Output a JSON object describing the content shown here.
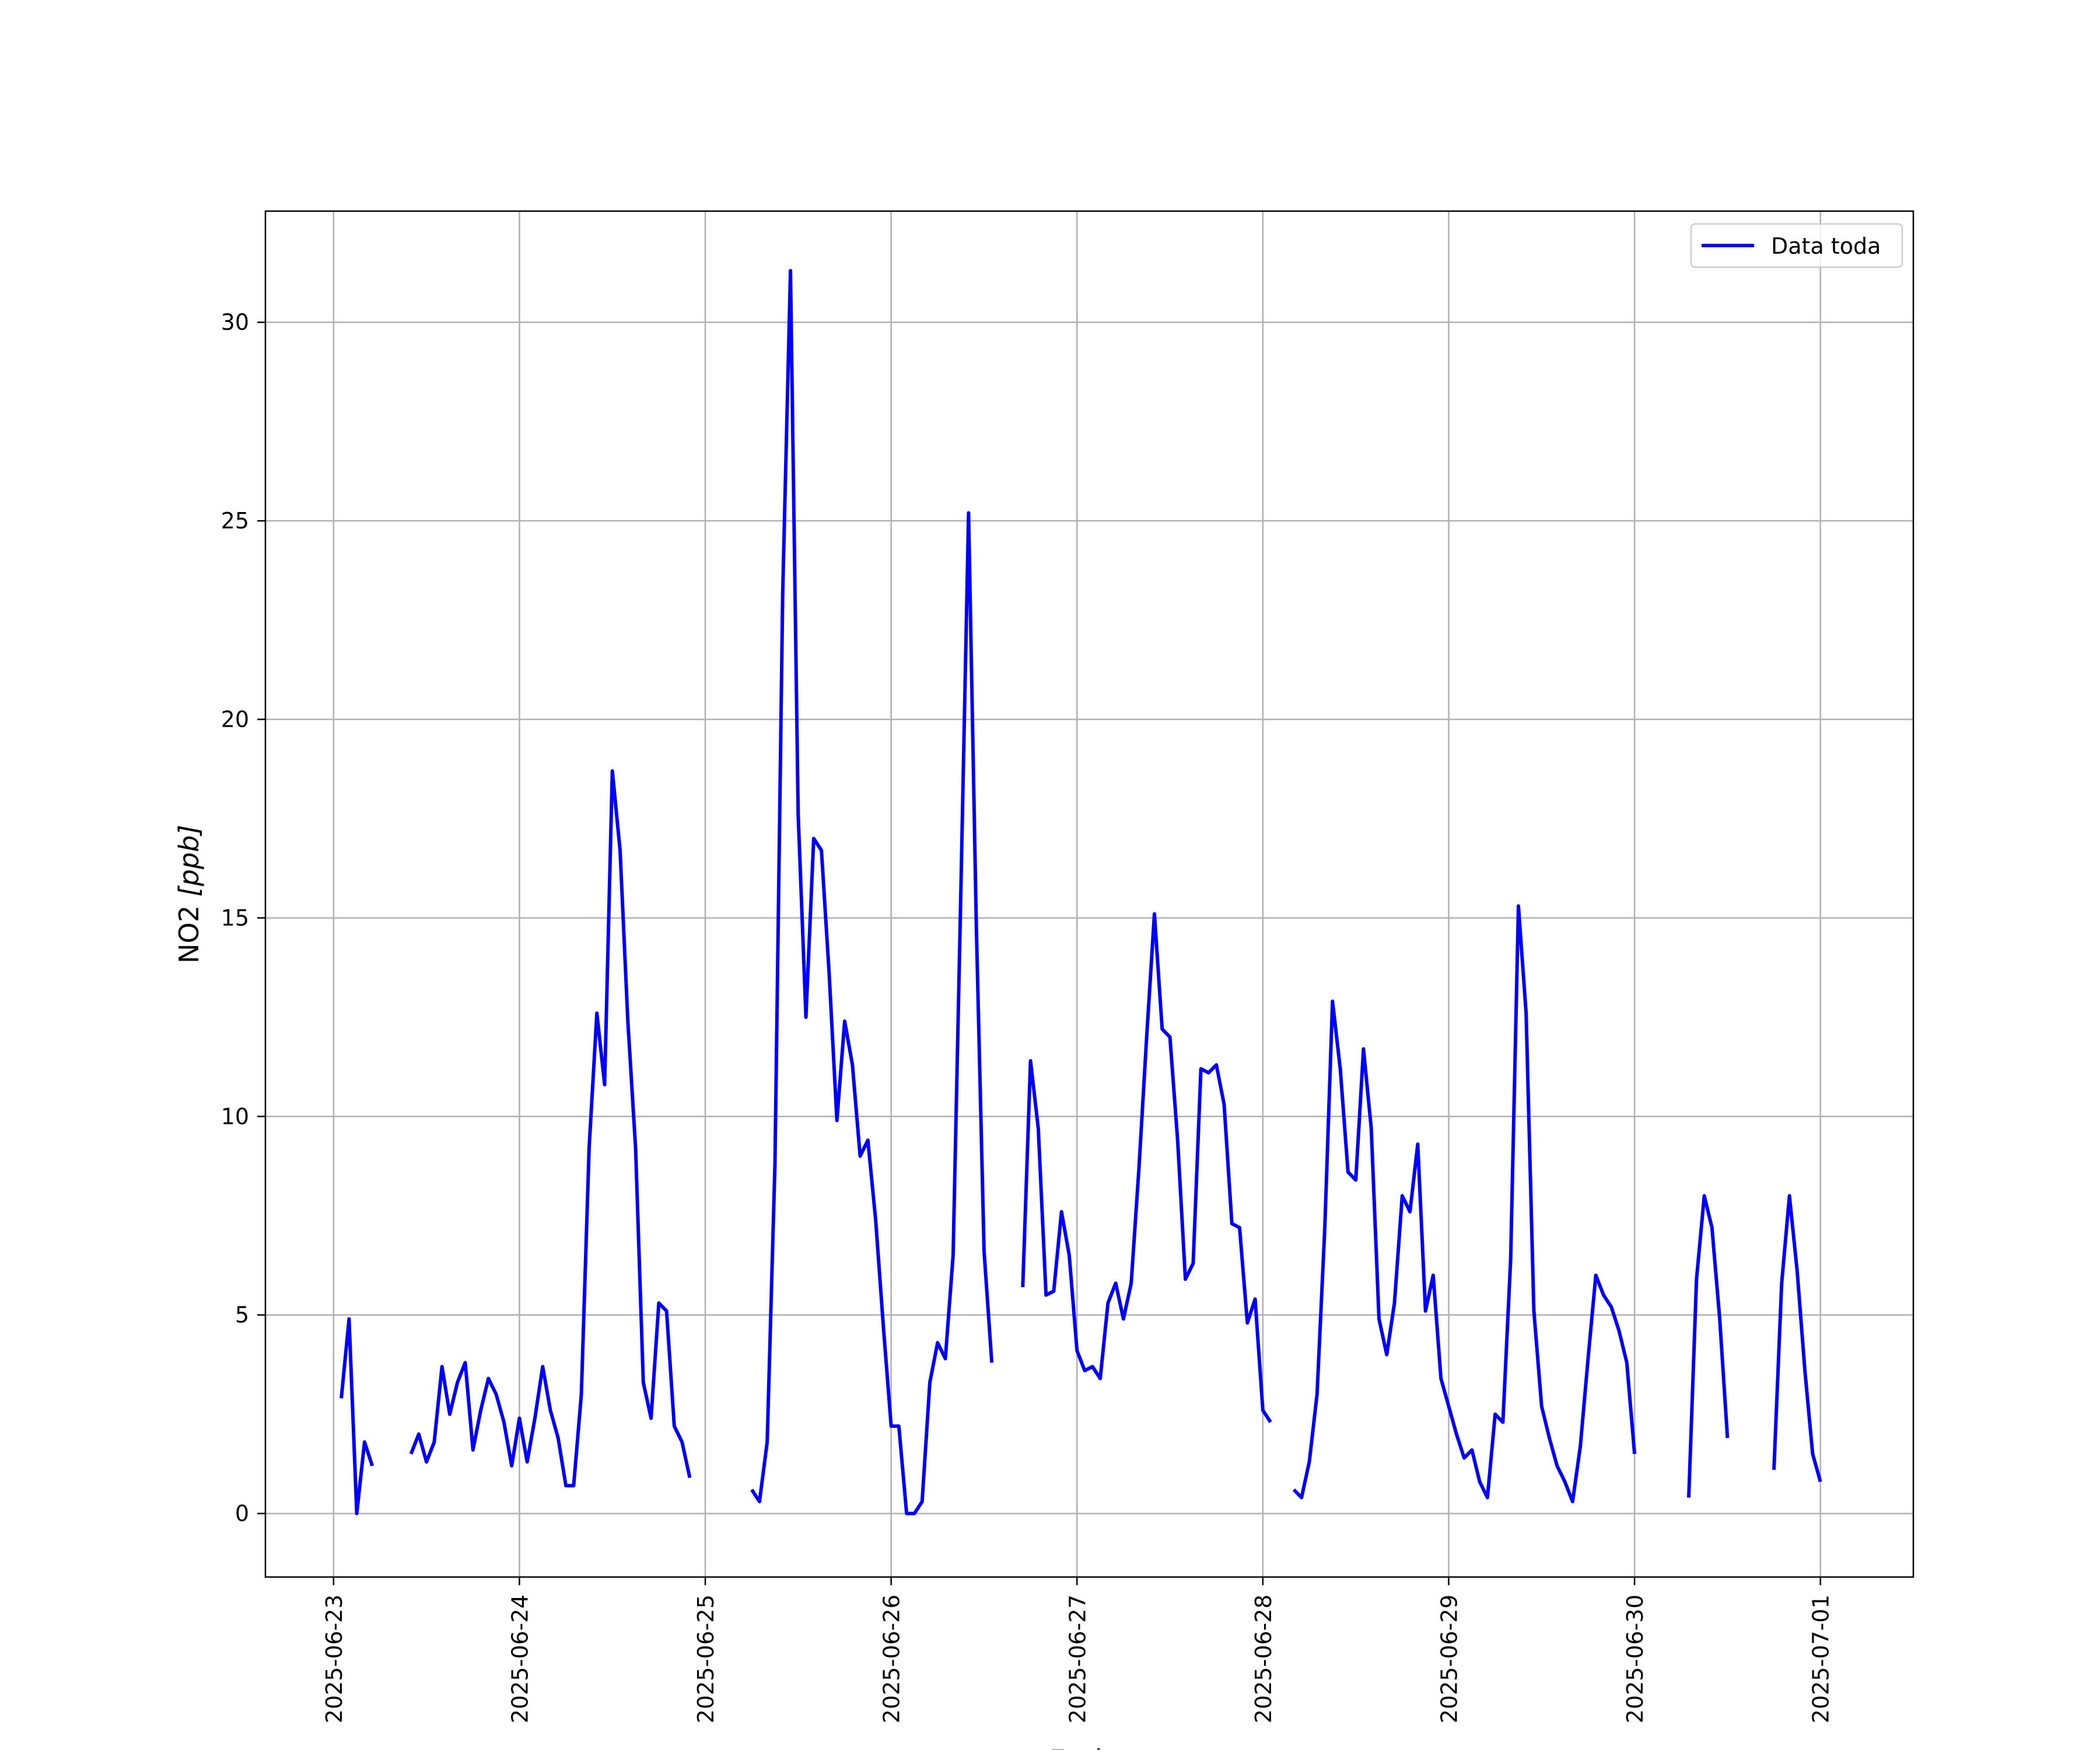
{
  "chart_data": {
    "type": "line",
    "xlabel": "Fecha",
    "ylabel_main": "NO2 ",
    "ylabel_unit": "[ppb]",
    "xlim": [
      "2025-06-22T15:12",
      "2025-07-01T12:00"
    ],
    "ylim": [
      -1.6,
      32.8
    ],
    "grid": true,
    "legend_position": "upper-right",
    "x_ticks": [
      "2025-06-23",
      "2025-06-24",
      "2025-06-25",
      "2025-06-26",
      "2025-06-27",
      "2025-06-28",
      "2025-06-29",
      "2025-06-30",
      "2025-07-01"
    ],
    "y_ticks": [
      0,
      5,
      10,
      15,
      20,
      25,
      30
    ],
    "colors": {
      "line": "#0000ff",
      "grid": "#b0b0b0",
      "axis": "#000000"
    },
    "series": [
      {
        "name": "Data toda",
        "segments": [
          [
            [
              "2025-06-23T01:00",
              2.9
            ],
            [
              "2025-06-23T02:00",
              4.9
            ],
            [
              "2025-06-23T03:00",
              0.0
            ],
            [
              "2025-06-23T04:00",
              1.8
            ],
            [
              "2025-06-23T05:00",
              1.2
            ]
          ],
          [
            [
              "2025-06-23T10:00",
              1.5
            ],
            [
              "2025-06-23T11:00",
              2.0
            ],
            [
              "2025-06-23T12:00",
              1.3
            ],
            [
              "2025-06-23T13:00",
              1.8
            ],
            [
              "2025-06-23T14:00",
              3.7
            ],
            [
              "2025-06-23T15:00",
              2.5
            ],
            [
              "2025-06-23T16:00",
              3.3
            ],
            [
              "2025-06-23T17:00",
              3.8
            ],
            [
              "2025-06-23T18:00",
              1.6
            ],
            [
              "2025-06-23T19:00",
              2.6
            ],
            [
              "2025-06-23T20:00",
              3.4
            ],
            [
              "2025-06-23T21:00",
              3.0
            ],
            [
              "2025-06-23T22:00",
              2.3
            ],
            [
              "2025-06-23T23:00",
              1.2
            ],
            [
              "2025-06-24T00:00",
              2.4
            ],
            [
              "2025-06-24T01:00",
              1.3
            ],
            [
              "2025-06-24T02:00",
              2.4
            ],
            [
              "2025-06-24T03:00",
              3.7
            ],
            [
              "2025-06-24T04:00",
              2.6
            ],
            [
              "2025-06-24T05:00",
              1.9
            ],
            [
              "2025-06-24T06:00",
              0.7
            ],
            [
              "2025-06-24T07:00",
              0.7
            ],
            [
              "2025-06-24T08:00",
              3.0
            ],
            [
              "2025-06-24T09:00",
              9.2
            ],
            [
              "2025-06-24T10:00",
              12.6
            ],
            [
              "2025-06-24T11:00",
              10.8
            ],
            [
              "2025-06-24T12:00",
              18.7
            ],
            [
              "2025-06-24T13:00",
              16.7
            ],
            [
              "2025-06-24T14:00",
              12.4
            ],
            [
              "2025-06-24T15:00",
              9.2
            ],
            [
              "2025-06-24T16:00",
              3.3
            ],
            [
              "2025-06-24T17:00",
              2.4
            ],
            [
              "2025-06-24T18:00",
              5.3
            ],
            [
              "2025-06-24T19:00",
              5.1
            ],
            [
              "2025-06-24T20:00",
              2.2
            ],
            [
              "2025-06-24T21:00",
              1.8
            ],
            [
              "2025-06-24T22:00",
              0.9
            ]
          ],
          [
            [
              "2025-06-25T06:00",
              0.6
            ],
            [
              "2025-06-25T07:00",
              0.3
            ],
            [
              "2025-06-25T08:00",
              1.8
            ],
            [
              "2025-06-25T09:00",
              8.8
            ],
            [
              "2025-06-25T10:00",
              23.2
            ],
            [
              "2025-06-25T11:00",
              31.3
            ],
            [
              "2025-06-25T12:00",
              17.6
            ],
            [
              "2025-06-25T13:00",
              12.5
            ],
            [
              "2025-06-25T14:00",
              17.0
            ],
            [
              "2025-06-25T15:00",
              16.7
            ],
            [
              "2025-06-25T16:00",
              13.6
            ],
            [
              "2025-06-25T17:00",
              9.9
            ],
            [
              "2025-06-25T18:00",
              12.4
            ],
            [
              "2025-06-25T19:00",
              11.3
            ],
            [
              "2025-06-25T20:00",
              9.0
            ],
            [
              "2025-06-25T21:00",
              9.4
            ],
            [
              "2025-06-25T22:00",
              7.4
            ],
            [
              "2025-06-25T23:00",
              4.7
            ],
            [
              "2025-06-26T00:00",
              2.2
            ],
            [
              "2025-06-26T01:00",
              2.2
            ],
            [
              "2025-06-26T02:00",
              0.0
            ],
            [
              "2025-06-26T03:00",
              0.0
            ],
            [
              "2025-06-26T04:00",
              0.3
            ],
            [
              "2025-06-26T05:00",
              3.3
            ],
            [
              "2025-06-26T06:00",
              4.3
            ],
            [
              "2025-06-26T07:00",
              3.9
            ],
            [
              "2025-06-26T08:00",
              6.5
            ],
            [
              "2025-06-26T09:00",
              15.6
            ],
            [
              "2025-06-26T10:00",
              25.2
            ],
            [
              "2025-06-26T11:00",
              14.8
            ],
            [
              "2025-06-26T12:00",
              6.6
            ],
            [
              "2025-06-26T13:00",
              3.8
            ]
          ],
          [
            [
              "2025-06-26T17:00",
              5.7
            ],
            [
              "2025-06-26T18:00",
              11.4
            ],
            [
              "2025-06-26T19:00",
              9.7
            ],
            [
              "2025-06-26T20:00",
              5.5
            ],
            [
              "2025-06-26T21:00",
              5.6
            ],
            [
              "2025-06-26T22:00",
              7.6
            ],
            [
              "2025-06-26T23:00",
              6.5
            ],
            [
              "2025-06-27T00:00",
              4.1
            ],
            [
              "2025-06-27T01:00",
              3.6
            ],
            [
              "2025-06-27T02:00",
              3.7
            ],
            [
              "2025-06-27T03:00",
              3.4
            ],
            [
              "2025-06-27T04:00",
              5.3
            ],
            [
              "2025-06-27T05:00",
              5.8
            ],
            [
              "2025-06-27T06:00",
              4.9
            ],
            [
              "2025-06-27T07:00",
              5.8
            ],
            [
              "2025-06-27T08:00",
              8.7
            ],
            [
              "2025-06-27T09:00",
              12.0
            ],
            [
              "2025-06-27T10:00",
              15.1
            ],
            [
              "2025-06-27T11:00",
              12.2
            ],
            [
              "2025-06-27T12:00",
              12.0
            ],
            [
              "2025-06-27T13:00",
              9.4
            ],
            [
              "2025-06-27T14:00",
              5.9
            ],
            [
              "2025-06-27T15:00",
              6.3
            ],
            [
              "2025-06-27T16:00",
              11.2
            ],
            [
              "2025-06-27T17:00",
              11.1
            ],
            [
              "2025-06-27T18:00",
              11.3
            ],
            [
              "2025-06-27T19:00",
              10.3
            ],
            [
              "2025-06-27T20:00",
              7.3
            ],
            [
              "2025-06-27T21:00",
              7.2
            ],
            [
              "2025-06-27T22:00",
              4.8
            ],
            [
              "2025-06-27T23:00",
              5.4
            ],
            [
              "2025-06-28T00:00",
              2.6
            ],
            [
              "2025-06-28T01:00",
              2.3
            ]
          ],
          [
            [
              "2025-06-28T04:00",
              0.6
            ],
            [
              "2025-06-28T05:00",
              0.4
            ],
            [
              "2025-06-28T06:00",
              1.3
            ],
            [
              "2025-06-28T07:00",
              3.0
            ],
            [
              "2025-06-28T08:00",
              7.2
            ],
            [
              "2025-06-28T09:00",
              12.9
            ],
            [
              "2025-06-28T10:00",
              11.2
            ],
            [
              "2025-06-28T11:00",
              8.6
            ],
            [
              "2025-06-28T12:00",
              8.4
            ],
            [
              "2025-06-28T13:00",
              11.7
            ],
            [
              "2025-06-28T14:00",
              9.7
            ],
            [
              "2025-06-28T15:00",
              4.9
            ],
            [
              "2025-06-28T16:00",
              4.0
            ],
            [
              "2025-06-28T17:00",
              5.3
            ],
            [
              "2025-06-28T18:00",
              8.0
            ],
            [
              "2025-06-28T19:00",
              7.6
            ],
            [
              "2025-06-28T20:00",
              9.3
            ],
            [
              "2025-06-28T21:00",
              5.1
            ],
            [
              "2025-06-28T22:00",
              6.0
            ],
            [
              "2025-06-28T23:00",
              3.4
            ],
            [
              "2025-06-29T00:00",
              2.7
            ],
            [
              "2025-06-29T01:00",
              2.0
            ],
            [
              "2025-06-29T02:00",
              1.4
            ],
            [
              "2025-06-29T03:00",
              1.6
            ],
            [
              "2025-06-29T04:00",
              0.8
            ],
            [
              "2025-06-29T05:00",
              0.4
            ],
            [
              "2025-06-29T06:00",
              2.5
            ],
            [
              "2025-06-29T07:00",
              2.3
            ],
            [
              "2025-06-29T08:00",
              6.4
            ],
            [
              "2025-06-29T09:00",
              15.3
            ],
            [
              "2025-06-29T10:00",
              12.6
            ],
            [
              "2025-06-29T11:00",
              5.1
            ],
            [
              "2025-06-29T12:00",
              2.7
            ],
            [
              "2025-06-29T13:00",
              1.9
            ],
            [
              "2025-06-29T14:00",
              1.2
            ],
            [
              "2025-06-29T15:00",
              0.8
            ],
            [
              "2025-06-29T16:00",
              0.3
            ],
            [
              "2025-06-29T17:00",
              1.7
            ],
            [
              "2025-06-29T18:00",
              3.9
            ],
            [
              "2025-06-29T19:00",
              6.0
            ],
            [
              "2025-06-29T20:00",
              5.5
            ],
            [
              "2025-06-29T21:00",
              5.2
            ],
            [
              "2025-06-29T22:00",
              4.6
            ],
            [
              "2025-06-29T23:00",
              3.8
            ],
            [
              "2025-06-30T00:00",
              1.5
            ]
          ],
          [
            [
              "2025-06-30T07:00",
              0.4
            ],
            [
              "2025-06-30T08:00",
              5.9
            ],
            [
              "2025-06-30T09:00",
              8.0
            ],
            [
              "2025-06-30T10:00",
              7.2
            ],
            [
              "2025-06-30T11:00",
              4.9
            ],
            [
              "2025-06-30T12:00",
              1.9
            ]
          ],
          [
            [
              "2025-06-30T18:00",
              1.1
            ],
            [
              "2025-06-30T19:00",
              5.8
            ],
            [
              "2025-06-30T20:00",
              8.0
            ],
            [
              "2025-06-30T21:00",
              6.1
            ],
            [
              "2025-06-30T22:00",
              3.6
            ],
            [
              "2025-06-30T23:00",
              1.5
            ],
            [
              "2025-07-01T00:00",
              0.8
            ]
          ]
        ]
      }
    ]
  }
}
